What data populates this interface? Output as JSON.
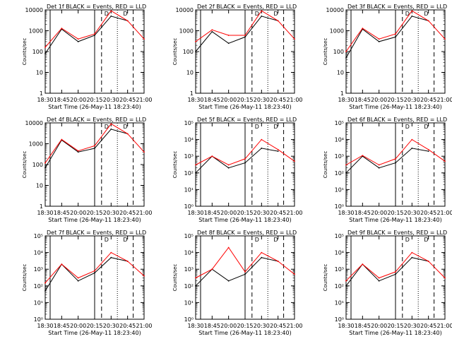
{
  "figure": {
    "x_axis_title": "Start Time (26-May-11 18:23:40)",
    "y_axis_title": "Counts/sec",
    "x_ticks": [
      "18:30",
      "18:45",
      "20:00",
      "20:15",
      "20:30",
      "20:45",
      "21:00"
    ],
    "colors": {
      "events": "#000000",
      "lld": "#ff0000"
    }
  },
  "chart_data": [
    {
      "type": "line",
      "title": "Det 1f BLACK = Events, RED = LLD",
      "y_scale": "log",
      "ylim": [
        1,
        10000
      ],
      "y_ticks": [
        "1",
        "10",
        "100",
        "1000",
        "10000"
      ],
      "annotations": [
        "D",
        "D"
      ],
      "x": [
        "18:30",
        "18:45",
        "20:00",
        "20:15",
        "20:30",
        "20:45",
        "21:00"
      ],
      "series": [
        {
          "name": "Events",
          "values": [
            80,
            1200,
            300,
            600,
            5000,
            3000,
            null
          ]
        },
        {
          "name": "LLD",
          "values": [
            160,
            1300,
            400,
            700,
            9000,
            3000,
            400
          ]
        }
      ]
    },
    {
      "type": "line",
      "title": "Det 2f BLACK = Events, RED = LLD",
      "y_scale": "log",
      "ylim": [
        1,
        10000
      ],
      "y_ticks": [
        "1",
        "10",
        "100",
        "1000",
        "10000"
      ],
      "annotations": [
        "D",
        "D"
      ],
      "x": [
        "18:30",
        "18:45",
        "20:00",
        "20:15",
        "20:30",
        "20:45",
        "21:00"
      ],
      "series": [
        {
          "name": "Events",
          "values": [
            100,
            900,
            250,
            500,
            5000,
            3000,
            null
          ]
        },
        {
          "name": "LLD",
          "values": [
            300,
            1100,
            600,
            600,
            9000,
            3000,
            400
          ]
        }
      ]
    },
    {
      "type": "line",
      "title": "Det 3f BLACK = Events, RED = LLD",
      "y_scale": "log",
      "ylim": [
        1,
        10000
      ],
      "y_ticks": [
        "1",
        "10",
        "100",
        "1000",
        "10000"
      ],
      "annotations": [
        "D",
        "D"
      ],
      "x": [
        "18:30",
        "18:45",
        "20:00",
        "20:15",
        "20:30",
        "20:45",
        "21:00"
      ],
      "series": [
        {
          "name": "Events",
          "values": [
            50,
            1200,
            300,
            500,
            5000,
            3000,
            null
          ]
        },
        {
          "name": "LLD",
          "values": [
            100,
            1300,
            400,
            700,
            9000,
            3000,
            400
          ]
        }
      ]
    },
    {
      "type": "line",
      "title": "Det 4f BLACK = Events, RED = LLD",
      "y_scale": "log",
      "ylim": [
        1,
        10000
      ],
      "y_ticks": [
        "1",
        "10",
        "100",
        "1000",
        "10000"
      ],
      "annotations": [
        "D",
        "D"
      ],
      "x": [
        "18:30",
        "18:45",
        "20:00",
        "20:15",
        "20:30",
        "20:45",
        "21:00"
      ],
      "series": [
        {
          "name": "Events",
          "values": [
            70,
            1500,
            400,
            600,
            5000,
            3000,
            null
          ]
        },
        {
          "name": "LLD",
          "values": [
            120,
            1600,
            450,
            800,
            9000,
            3000,
            400
          ]
        }
      ]
    },
    {
      "type": "line",
      "title": "Det 5f BLACK = Events, RED = LLD",
      "y_scale": "log",
      "ylim": [
        1,
        100000
      ],
      "y_ticks": [
        "10⁰",
        "10¹",
        "10²",
        "10³",
        "10⁴",
        "10⁵"
      ],
      "annotations": [
        "D",
        "D"
      ],
      "x": [
        "18:30",
        "18:45",
        "20:00",
        "20:15",
        "20:30",
        "20:45",
        "21:00"
      ],
      "series": [
        {
          "name": "Events",
          "values": [
            100,
            1000,
            200,
            400,
            3000,
            2000,
            null
          ]
        },
        {
          "name": "LLD",
          "values": [
            300,
            1000,
            300,
            700,
            10000,
            2500,
            500
          ]
        }
      ]
    },
    {
      "type": "line",
      "title": "Det 6f BLACK = Events, RED = LLD",
      "y_scale": "log",
      "ylim": [
        1,
        100000
      ],
      "y_ticks": [
        "10⁰",
        "10¹",
        "10²",
        "10³",
        "10⁴",
        "10⁵"
      ],
      "annotations": [
        "D",
        "D"
      ],
      "x": [
        "18:30",
        "18:45",
        "20:00",
        "20:15",
        "20:30",
        "20:45",
        "21:00"
      ],
      "series": [
        {
          "name": "Events",
          "values": [
            100,
            1000,
            200,
            400,
            3000,
            2000,
            null
          ]
        },
        {
          "name": "LLD",
          "values": [
            300,
            1100,
            300,
            700,
            10000,
            2500,
            500
          ]
        }
      ]
    },
    {
      "type": "line",
      "title": "Det 7f BLACK = Events, RED = LLD",
      "y_scale": "log",
      "ylim": [
        1,
        100000
      ],
      "y_ticks": [
        "10⁰",
        "10¹",
        "10²",
        "10³",
        "10⁴",
        "10⁵"
      ],
      "annotations": [
        "D",
        "D"
      ],
      "x": [
        "18:30",
        "18:45",
        "20:00",
        "20:15",
        "20:30",
        "20:45",
        "21:00"
      ],
      "series": [
        {
          "name": "Events",
          "values": [
            50,
            2000,
            200,
            600,
            5000,
            3000,
            null
          ]
        },
        {
          "name": "LLD",
          "values": [
            150,
            2000,
            300,
            800,
            10000,
            3000,
            400
          ]
        }
      ]
    },
    {
      "type": "line",
      "title": "Det 8f BLACK = Events, RED = LLD",
      "y_scale": "log",
      "ylim": [
        1,
        100000
      ],
      "y_ticks": [
        "10⁰",
        "10¹",
        "10²",
        "10³",
        "10⁴",
        "10⁵"
      ],
      "annotations": [
        "D",
        "D"
      ],
      "x": [
        "18:30",
        "18:45",
        "20:00",
        "20:15",
        "20:30",
        "20:45",
        "21:00"
      ],
      "series": [
        {
          "name": "Events",
          "values": [
            100,
            1000,
            200,
            500,
            5000,
            3000,
            null
          ]
        },
        {
          "name": "LLD",
          "values": [
            300,
            1000,
            20000,
            700,
            10000,
            3000,
            500
          ]
        }
      ]
    },
    {
      "type": "line",
      "title": "Det 9f BLACK = Events, RED = LLD",
      "y_scale": "log",
      "ylim": [
        1,
        100000
      ],
      "y_ticks": [
        "10⁰",
        "10¹",
        "10²",
        "10³",
        "10⁴",
        "10⁵"
      ],
      "annotations": [
        "D",
        "D"
      ],
      "x": [
        "18:30",
        "18:45",
        "20:00",
        "20:15",
        "20:30",
        "20:45",
        "21:00"
      ],
      "series": [
        {
          "name": "Events",
          "values": [
            100,
            2000,
            200,
            500,
            5000,
            3000,
            null
          ]
        },
        {
          "name": "LLD",
          "values": [
            200,
            2000,
            300,
            700,
            10000,
            3000,
            300
          ]
        }
      ]
    }
  ]
}
